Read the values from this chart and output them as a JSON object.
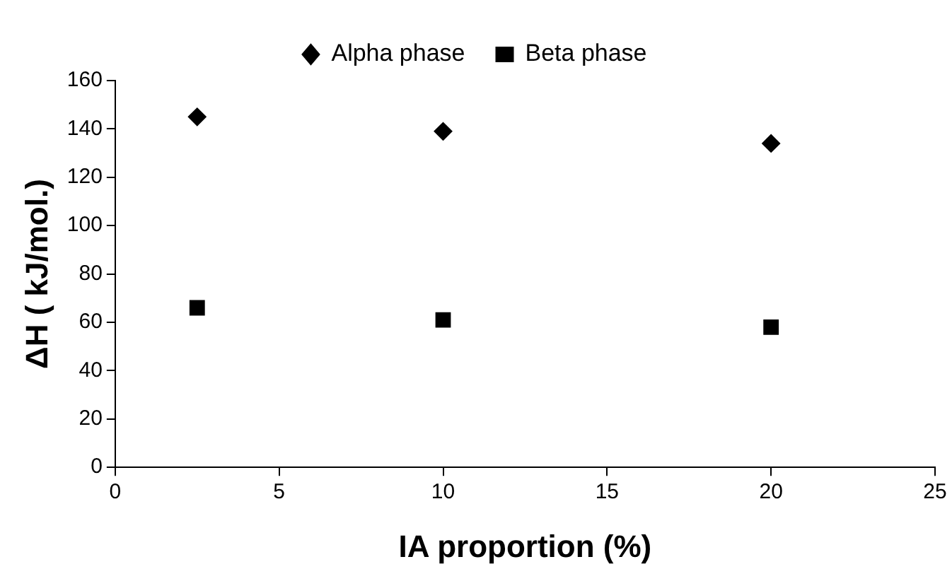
{
  "chart_data": {
    "type": "scatter",
    "xlabel": "IA proportion (%)",
    "ylabel": "ΔH ( kJ/mol.)",
    "x": [
      2.5,
      10,
      20
    ],
    "series": [
      {
        "name": "Alpha phase",
        "color": "#000000",
        "marker": "diamond",
        "values": [
          145,
          139,
          134
        ]
      },
      {
        "name": "Beta phase",
        "color": "#000000",
        "marker": "square",
        "values": [
          66,
          61,
          58
        ]
      }
    ],
    "xlim": [
      0,
      25
    ],
    "xticks": [
      0,
      5,
      10,
      15,
      20,
      25
    ],
    "ylim": [
      0,
      160
    ],
    "yticks": [
      0,
      20,
      40,
      60,
      80,
      100,
      120,
      140,
      160
    ],
    "grid": false,
    "legend": "top"
  }
}
